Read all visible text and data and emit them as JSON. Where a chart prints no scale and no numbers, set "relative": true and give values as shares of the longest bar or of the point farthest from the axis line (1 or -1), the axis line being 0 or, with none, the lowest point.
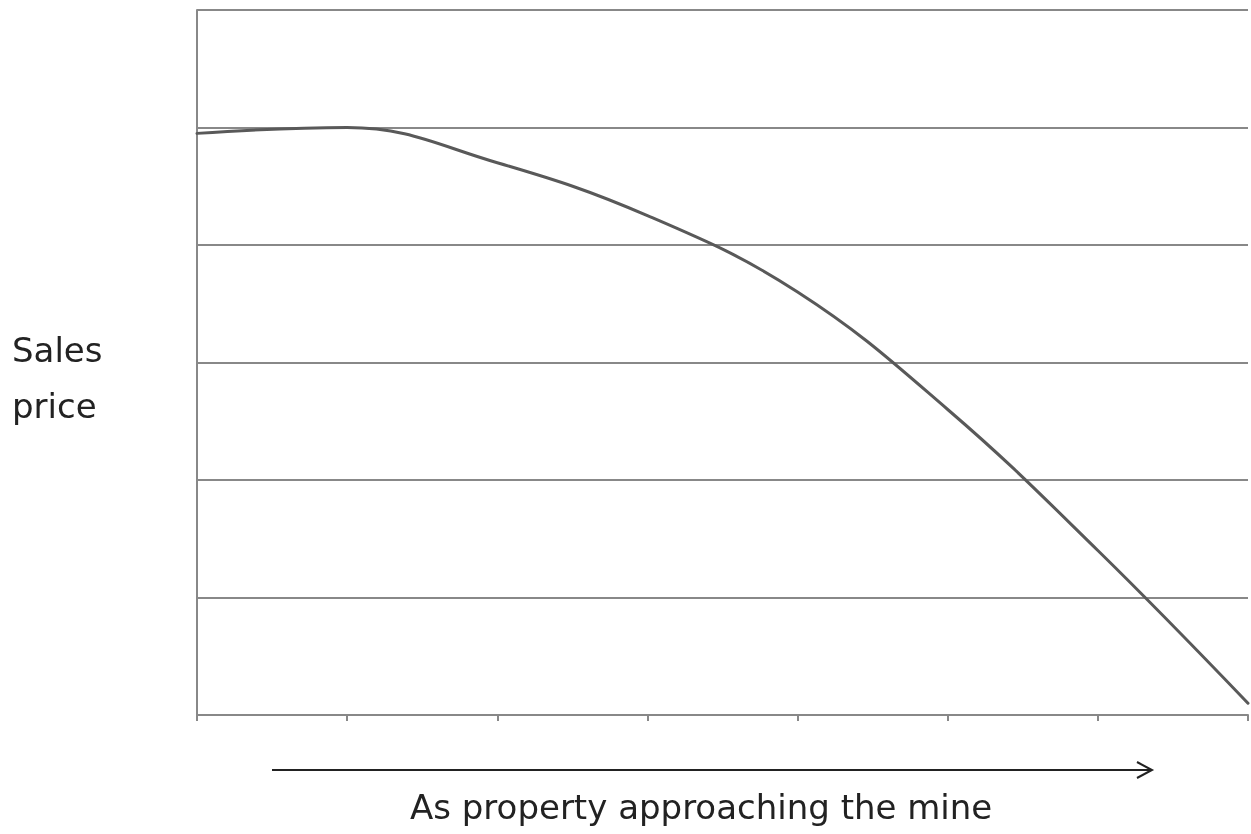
{
  "chart_data": {
    "type": "line",
    "relative": true,
    "ylabel": "Sales\nprice",
    "xlabel": "As property approaching the mine",
    "categories": [
      null,
      null,
      null,
      null,
      null,
      null,
      null,
      null
    ],
    "series": [
      {
        "color": "#595959",
        "values": [
          0.99,
          1,
          0.94,
          0.85,
          0.72,
          0.52,
          0.28,
          0.02
        ]
      }
    ],
    "grid": "y",
    "marker": "none",
    "line_style": "solid"
  }
}
